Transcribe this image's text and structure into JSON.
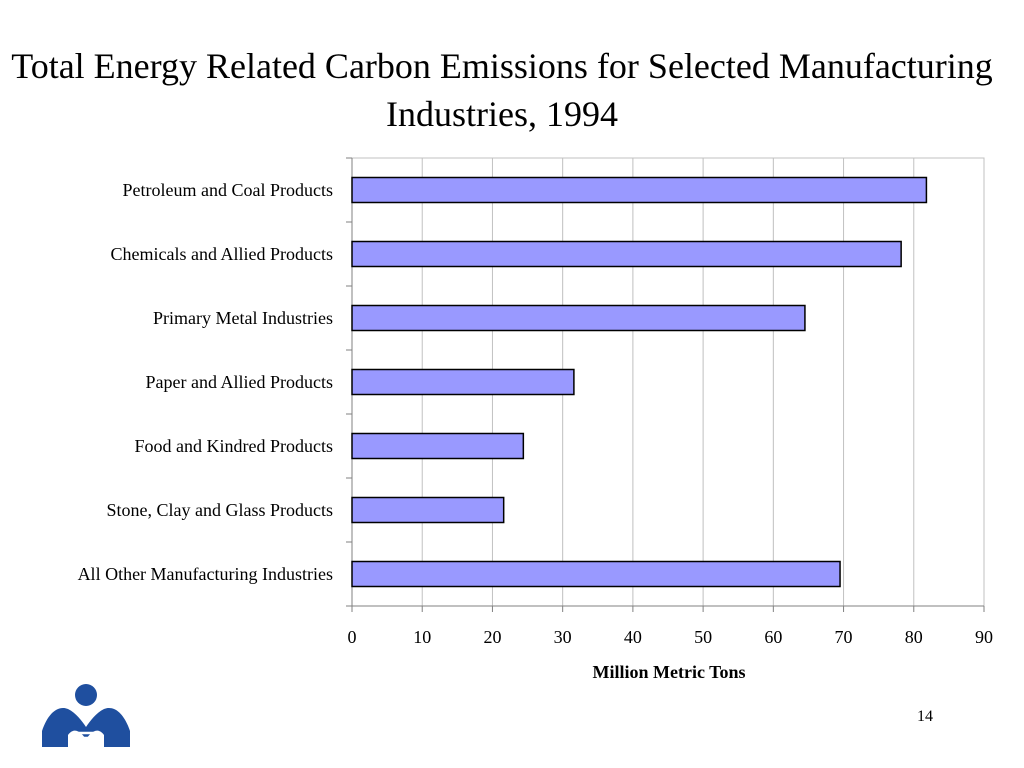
{
  "slide": {
    "page_number": "14",
    "logo_icon": "institution-logo"
  },
  "chart_data": {
    "type": "bar",
    "orientation": "horizontal",
    "title": "Total Energy Related Carbon Emissions for Selected Manufacturing Industries, 1994",
    "categories": [
      "Petroleum and Coal Products",
      "Chemicals and Allied Products",
      "Primary Metal Industries",
      "Paper and Allied Products",
      "Food and Kindred Products",
      "Stone, Clay and Glass Products",
      "All Other Manufacturing Industries"
    ],
    "values": [
      81.8,
      78.2,
      64.5,
      31.6,
      24.4,
      21.6,
      69.5
    ],
    "xlabel": "Million Metric Tons",
    "ylabel": "",
    "xlim": [
      0,
      90
    ],
    "xticks": [
      "0",
      "10",
      "20",
      "30",
      "40",
      "50",
      "60",
      "70",
      "80",
      "90"
    ],
    "grid": true,
    "bar_color": "#9999ff",
    "bar_edge_color": "#000000",
    "grid_color": "#c0c0c0"
  }
}
